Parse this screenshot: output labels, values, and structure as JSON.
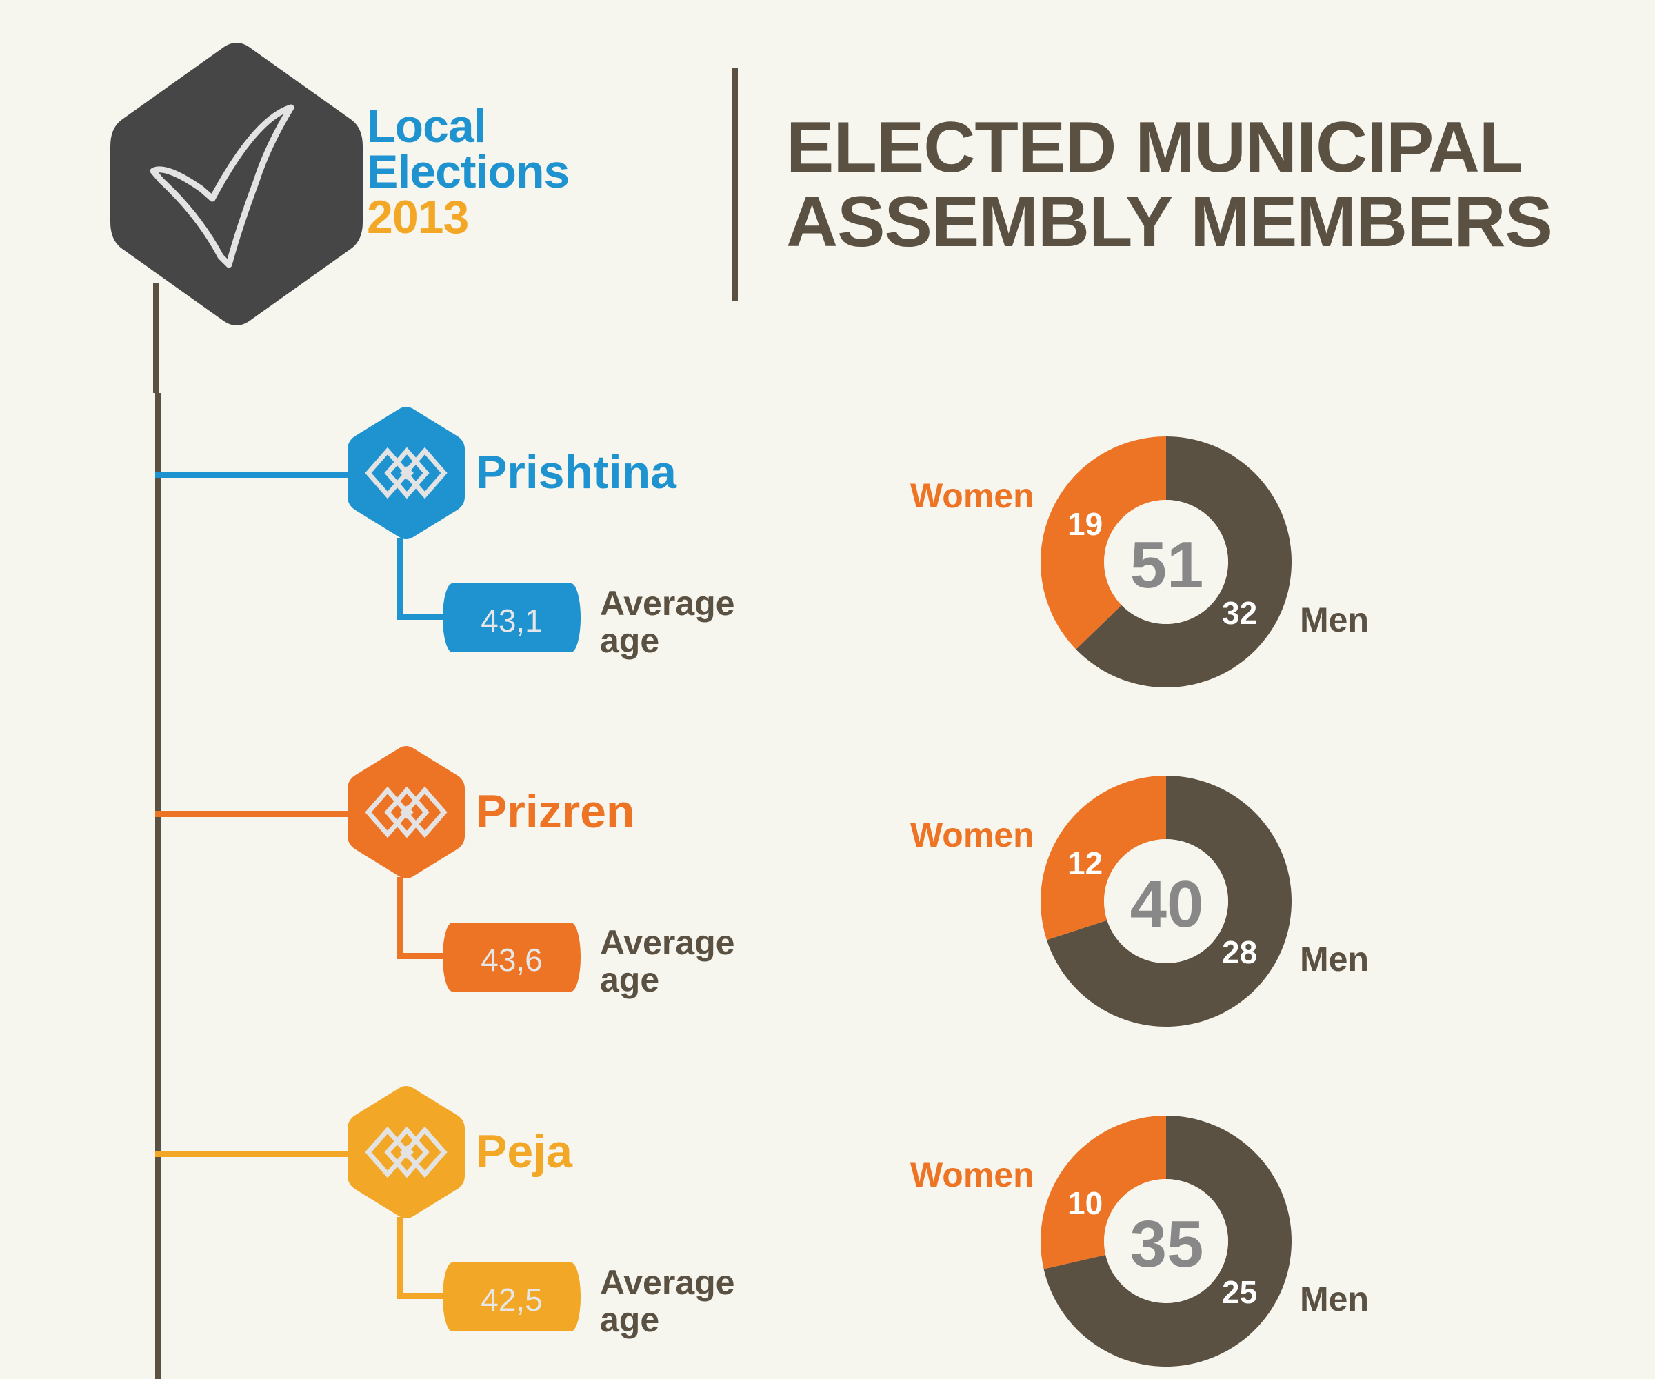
{
  "logo": {
    "line1": "Local",
    "line2": "Elections",
    "year": "2013",
    "icon": "checkmark-icon",
    "hex_color": "#464646"
  },
  "title": {
    "line1": "ELECTED MUNICIPAL",
    "line2": "ASSEMBLY MEMBERS"
  },
  "colors": {
    "background": "#f6f5ee",
    "text_dark": "#5a5142",
    "women": "#ed7325",
    "men": "#5a5142",
    "total_text": "#888888"
  },
  "cities": [
    {
      "name": "Prishtina",
      "color": "#1e93d0",
      "average_age": "43,1",
      "age_label_1": "Average",
      "age_label_2": "age",
      "icon": "city-emblem-icon",
      "women_label": "Women",
      "men_label": "Men",
      "women": "19",
      "men": "32",
      "total": "51"
    },
    {
      "name": "Prizren",
      "color": "#ed7325",
      "average_age": "43,6",
      "age_label_1": "Average",
      "age_label_2": "age",
      "icon": "city-emblem-icon",
      "women_label": "Women",
      "men_label": "Men",
      "women": "12",
      "men": "28",
      "total": "40"
    },
    {
      "name": "Peja",
      "color": "#f3a726",
      "average_age": "42,5",
      "age_label_1": "Average",
      "age_label_2": "age",
      "icon": "city-emblem-icon",
      "women_label": "Women",
      "men_label": "Men",
      "women": "10",
      "men": "25",
      "total": "35"
    }
  ],
  "chart_data": {
    "type": "pie",
    "title": "Elected Municipal Assembly Members — Local Elections 2013",
    "categories": [
      "Prishtina",
      "Prizren",
      "Peja"
    ],
    "series": [
      {
        "name": "Women",
        "values": [
          19,
          12,
          10
        ],
        "color": "#ed7325"
      },
      {
        "name": "Men",
        "values": [
          32,
          28,
          25
        ],
        "color": "#5a5142"
      }
    ],
    "totals": [
      51,
      40,
      35
    ],
    "average_age": [
      43.1,
      43.6,
      42.5
    ],
    "subtype": "donut",
    "legend": "inline labels (Women left, Men right)"
  }
}
